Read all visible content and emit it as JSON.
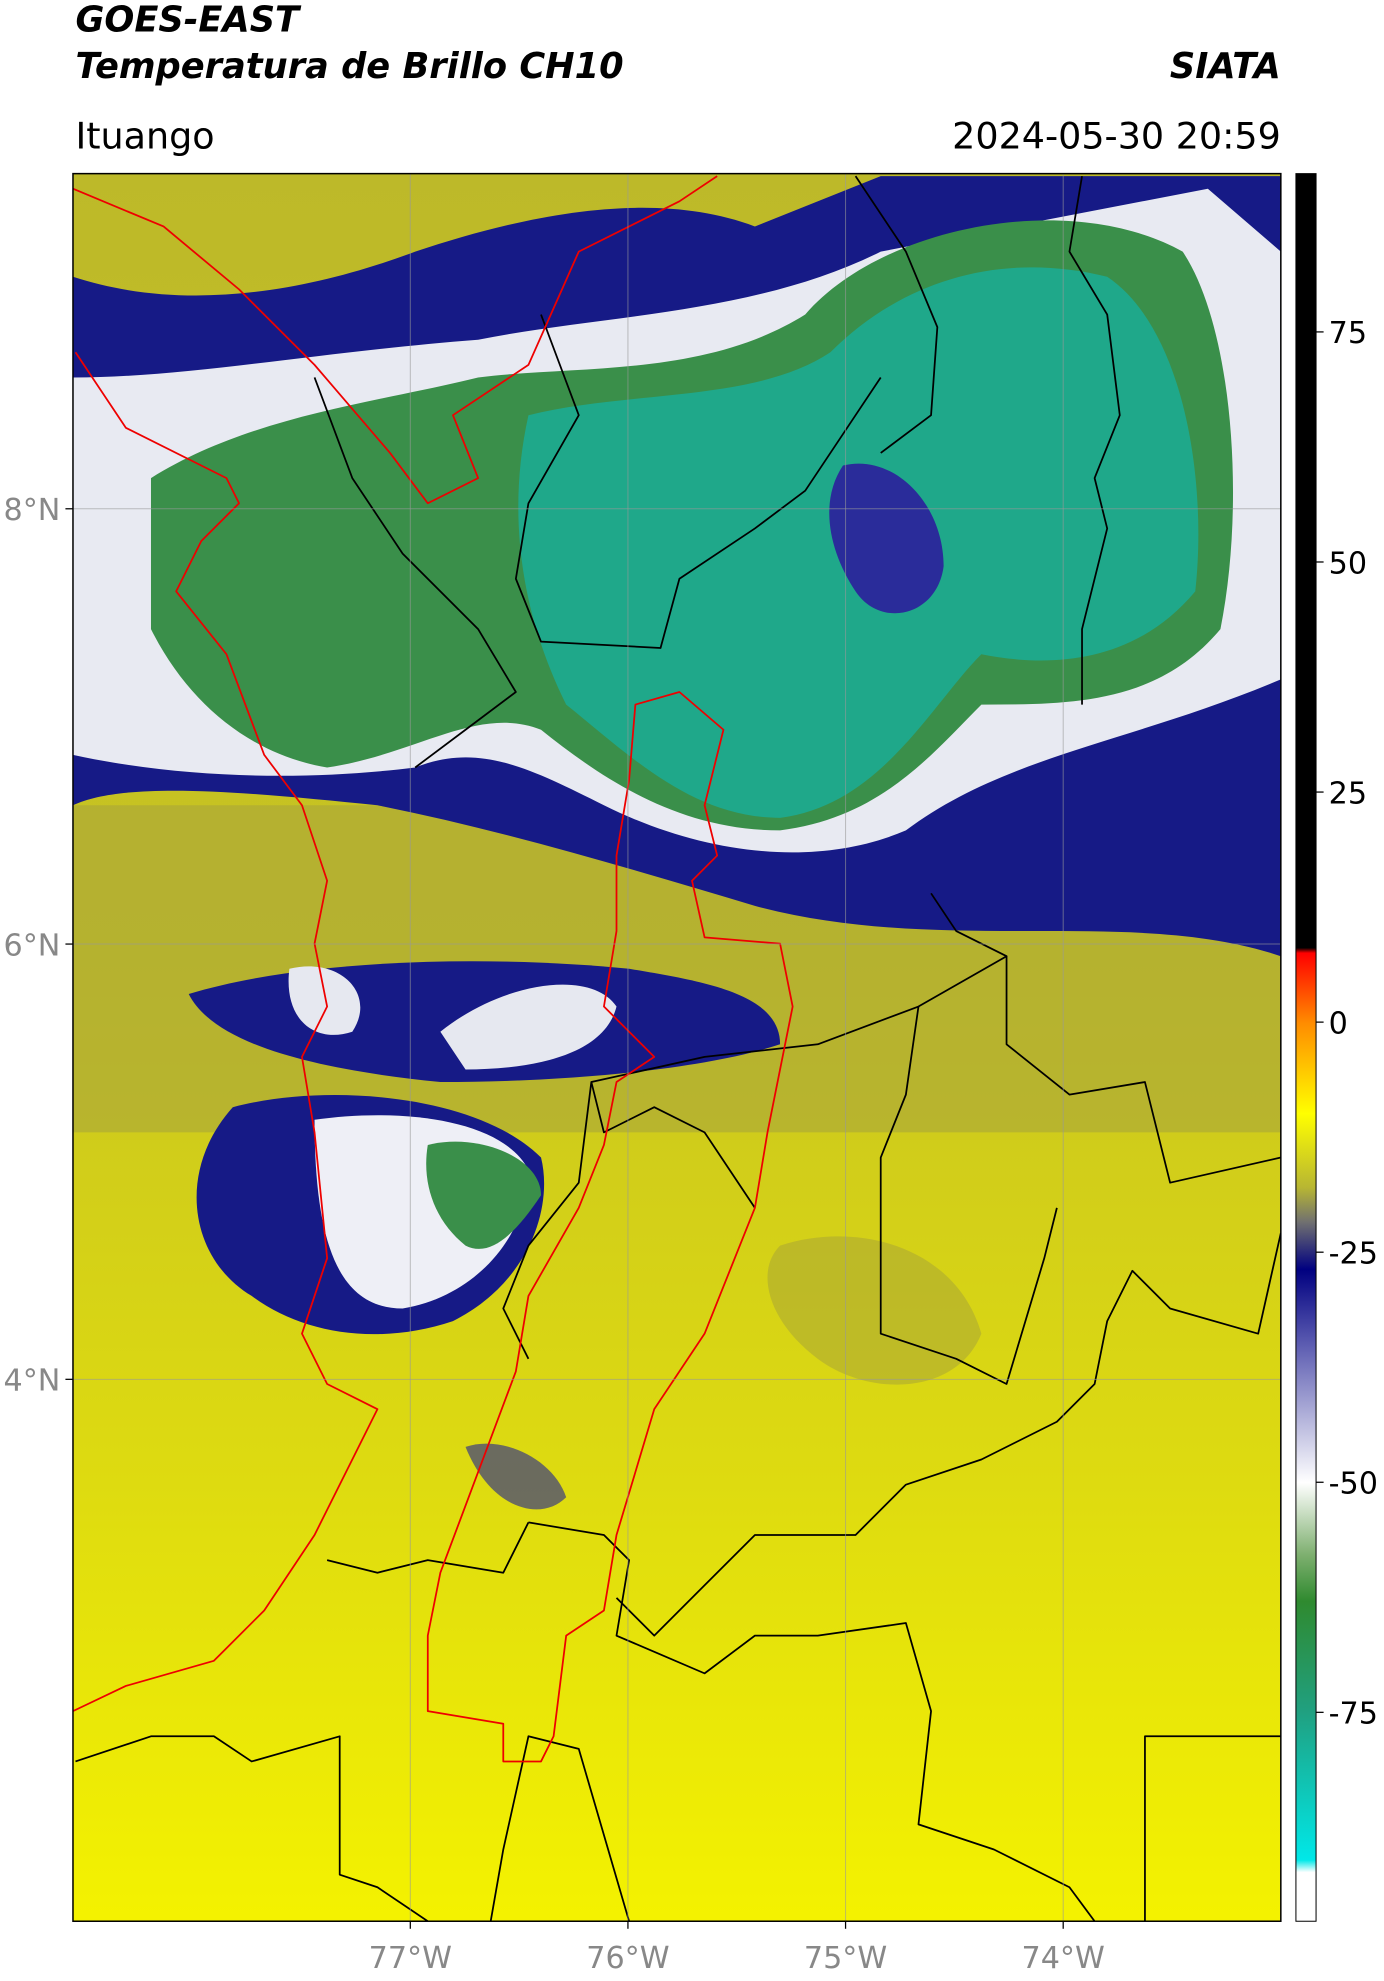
{
  "header": {
    "satellite": "GOES-EAST",
    "product": "Temperatura de Brillo CH10",
    "source": "SIATA",
    "location": "Ituango",
    "datetime": "2024-05-30 20:59"
  },
  "map": {
    "xlim": [
      -78.55,
      -73.0
    ],
    "ylim": [
      1.51,
      9.54
    ],
    "xticks": [
      {
        "value": -77,
        "label": "77°W"
      },
      {
        "value": -76,
        "label": "76°W"
      },
      {
        "value": -75,
        "label": "75°W"
      },
      {
        "value": -74,
        "label": "74°W"
      }
    ],
    "yticks": [
      {
        "value": 8,
        "label": "8°N"
      },
      {
        "value": 6,
        "label": "6°N"
      },
      {
        "value": 4,
        "label": "4°N"
      }
    ]
  },
  "colorbar": {
    "lim": [
      -97.7,
      92.2
    ],
    "ticks": [
      75,
      50,
      25,
      0,
      -25,
      -50,
      -75
    ]
  }
}
